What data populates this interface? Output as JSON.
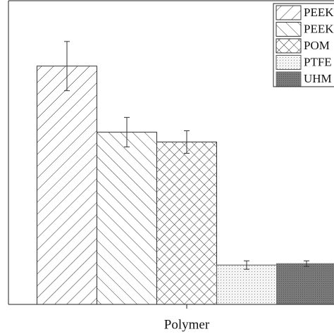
{
  "chart_data": {
    "type": "bar",
    "x_label": "Polymer",
    "categories": [
      "Polymer"
    ],
    "ylim": [
      0,
      432
    ],
    "series": [
      {
        "name": "PEEK",
        "color": "#333333",
        "pattern": "forward",
        "values": [
          339
        ],
        "errors": [
          35
        ]
      },
      {
        "name": "PEEK",
        "color": "#333333",
        "pattern": "backward",
        "values": [
          245
        ],
        "errors": [
          21
        ]
      },
      {
        "name": "POM",
        "color": "#333333",
        "pattern": "cross",
        "values": [
          231
        ],
        "errors": [
          16
        ]
      },
      {
        "name": "PTFE",
        "color": "#555555",
        "pattern": "dots",
        "values": [
          56
        ],
        "errors": [
          6
        ]
      },
      {
        "name": "UHM",
        "color": "#777777",
        "pattern": "solid",
        "values": [
          58
        ],
        "errors": [
          4
        ]
      }
    ]
  }
}
